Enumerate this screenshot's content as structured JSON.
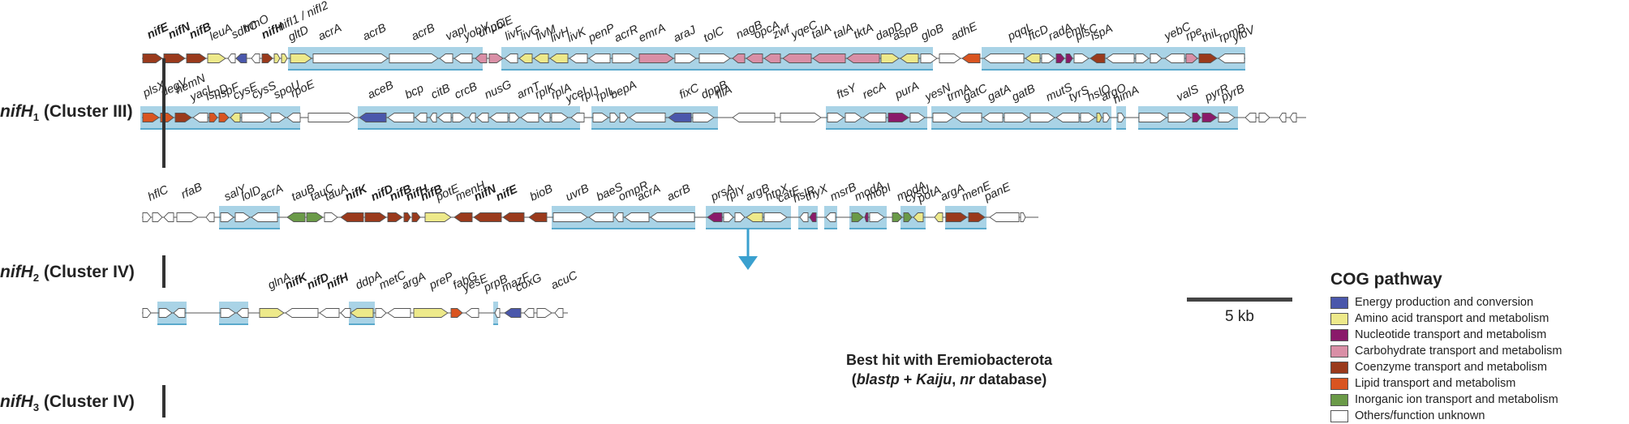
{
  "rows": [
    {
      "id": "r1a",
      "label_main": "nifH",
      "label_sub": "1",
      "label_rest": " (Cluster III)"
    },
    {
      "id": "r2",
      "label_main": "nifH",
      "label_sub": "2",
      "label_rest": " (Cluster IV)"
    },
    {
      "id": "r3",
      "label_main": "nifH",
      "label_sub": "3",
      "label_rest": " (Cluster IV)"
    }
  ],
  "legend": {
    "title": "COG pathway",
    "items": [
      {
        "label": "Energy production and conversion",
        "color": "#4a57ab"
      },
      {
        "label": "Amino acid transport and metabolism",
        "color": "#ede98a"
      },
      {
        "label": "Nucleotide transport and metabolism",
        "color": "#8a1a6a"
      },
      {
        "label": "Carbohydrate transport and metabolism",
        "color": "#d98fa6"
      },
      {
        "label": "Coenzyme transport and metabolism",
        "color": "#9a3a1c"
      },
      {
        "label": "Lipid transport and metabolism",
        "color": "#d95420"
      },
      {
        "label": "Inorganic ion transport and metabolism",
        "color": "#6a9a48"
      },
      {
        "label": "Others/function unknown",
        "color": "#ffffff"
      }
    ]
  },
  "scale_label": "5 kb",
  "note": {
    "line1": "Best hit with Eremiobacterota",
    "line2_a": "(",
    "line2_b": "blastp",
    "line2_c": " + ",
    "line2_d": "Kaiju",
    "line2_e": ", ",
    "line2_f": "nr",
    "line2_g": " database)"
  },
  "gene_labels": {
    "row1": [
      "nifE",
      "nifN",
      "nifB",
      "leuA",
      "sdhC",
      "trmO",
      "nifH",
      "nifI1 / nifI2",
      "gltD",
      "acrA",
      "acrB",
      "acrB",
      "vapI",
      "yobV",
      "uhpC",
      "ubiE",
      "livF",
      "livG",
      "livM",
      "livH",
      "livK",
      "penP",
      "acrR",
      "emrA",
      "araJ",
      "tolC",
      "nagB",
      "opcA",
      "zwf",
      "yqeC",
      "talA",
      "talA",
      "tktA",
      "dapD",
      "aspB",
      "gloB",
      "adhE",
      "pqqL",
      "ftcD",
      "radA",
      "cmk",
      "plsC",
      "ispA",
      "yebC",
      "rpe",
      "thiL",
      "rpmB",
      "yloV"
    ],
    "row2": [
      "plsX",
      "degV",
      "hemN",
      "yacL",
      "ispD",
      "ispF",
      "cysE",
      "cysS",
      "spoU",
      "rpoE",
      "aceB",
      "bcp",
      "citB",
      "crcB",
      "nusG",
      "arnT",
      "rplK",
      "rplA",
      "yceI",
      "rplJ",
      "rplL",
      "bepA",
      "fixC",
      "dppB",
      "fliA",
      "ftsY",
      "recA",
      "purA",
      "yesN",
      "trmA",
      "gatC",
      "gatA",
      "gatB",
      "mutS",
      "tyrS",
      "hslO",
      "argO",
      "himA",
      "valS",
      "pyrR",
      "pyrB"
    ],
    "row3": [
      "hflC",
      "rfaB",
      "salY",
      "lolD",
      "acrA",
      "tauB",
      "tauC",
      "tauA",
      "nifK",
      "nifD",
      "nifB",
      "nifH",
      "nifB",
      "potE",
      "menH",
      "nifN",
      "nifE",
      "bioB",
      "uvrB",
      "baeS",
      "ompR",
      "acrA",
      "acrB",
      "prsA",
      "rplY",
      "argB",
      "htpX",
      "catE",
      "hslR",
      "thyX",
      "msrB",
      "modA",
      "mopI",
      "modA",
      "cysU",
      "potA",
      "argA",
      "menE",
      "panE"
    ],
    "row4": [
      "glnA",
      "nifK",
      "nifD",
      "nifH",
      "ddpA",
      "metC",
      "argA",
      "preP",
      "fabG",
      "yesE",
      "prpB",
      "mazF",
      "coxG",
      "acuC"
    ]
  }
}
